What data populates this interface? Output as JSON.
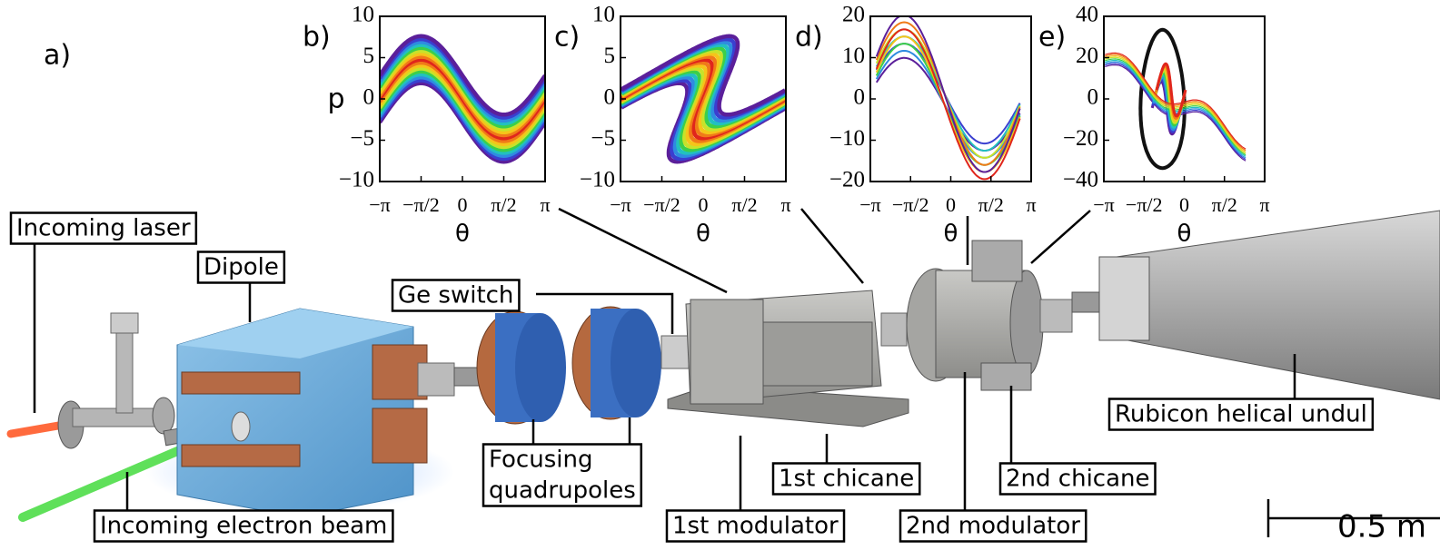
{
  "figure_label": "a)",
  "panels": [
    {
      "label": "b)",
      "ylabel": "p",
      "xlabel": "θ",
      "yticks": [
        "10",
        "5",
        "0",
        "−5",
        "−10"
      ],
      "xticks": [
        "−π",
        "−π/2",
        "0",
        "π/2",
        "π"
      ]
    },
    {
      "label": "c)",
      "xlabel": "θ",
      "yticks": [
        "10",
        "5",
        "0",
        "−5",
        "−10"
      ],
      "xticks": [
        "−π",
        "−π/2",
        "0",
        "π/2",
        "π"
      ]
    },
    {
      "label": "d)",
      "xlabel": "θ",
      "yticks": [
        "20",
        "10",
        "0",
        "−10",
        "−20"
      ],
      "xticks": [
        "−π",
        "−π/2",
        "0",
        "π/2",
        "π"
      ]
    },
    {
      "label": "e)",
      "xlabel": "θ",
      "yticks": [
        "40",
        "20",
        "0",
        "−20",
        "−40"
      ],
      "xticks": [
        "−π",
        "−π/2",
        "0",
        "π/2",
        "π"
      ]
    }
  ],
  "labels": {
    "incoming_laser": "Incoming laser",
    "dipole": "Dipole",
    "ge_switch": "Ge switch",
    "focusing_quadrupoles": [
      "Focusing",
      "quadrupoles"
    ],
    "incoming_electron_beam": "Incoming electron beam",
    "first_modulator": "1st modulator",
    "first_chicane": "1st chicane",
    "second_chicane": "2nd chicane",
    "second_modulator": "2nd modulator",
    "undulator": "Rubicon helical undul"
  },
  "scale_bar": "0.5 m"
}
